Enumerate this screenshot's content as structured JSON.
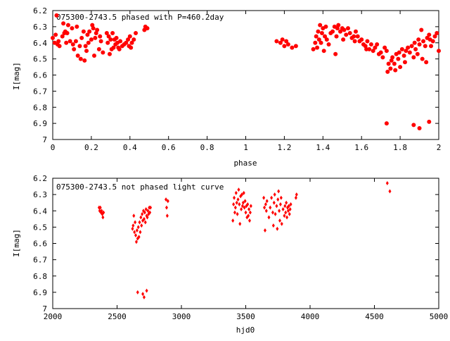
{
  "chart_data": [
    {
      "type": "scatter",
      "title": "075300-2743.5 phased with P=460.2day",
      "xlabel": "phase",
      "ylabel": "I[mag]",
      "xlim": [
        0,
        2
      ],
      "ylim": [
        6.2,
        7
      ],
      "y_inverted": true,
      "grid": false,
      "marker_color": "#ff0000",
      "marker_style": "filled circle",
      "x_ticks": [
        0,
        0.2,
        0.4,
        0.6,
        0.8,
        1,
        1.2,
        1.4,
        1.6,
        1.8,
        2
      ],
      "x_tick_labels": [
        "0",
        "0.2",
        "0.4",
        "0.6",
        "0.8",
        "1",
        "1.2",
        "1.4",
        "1.6",
        "1.8",
        "2"
      ],
      "y_ticks": [
        6.2,
        6.3,
        6.4,
        6.5,
        6.6,
        6.7,
        6.8,
        6.9,
        7
      ],
      "y_tick_labels": [
        "6.2",
        "6.3",
        "6.4",
        "6.5",
        "6.6",
        "6.7",
        "6.8",
        "6.9",
        "7"
      ],
      "points": [
        [
          0.0,
          6.37
        ],
        [
          0.01,
          6.4
        ],
        [
          0.015,
          6.35
        ],
        [
          0.02,
          6.23
        ],
        [
          0.025,
          6.41
        ],
        [
          0.03,
          6.39
        ],
        [
          0.035,
          6.42
        ],
        [
          0.05,
          6.36
        ],
        [
          0.055,
          6.28
        ],
        [
          0.06,
          6.34
        ],
        [
          0.065,
          6.33
        ],
        [
          0.07,
          6.4
        ],
        [
          0.075,
          6.34
        ],
        [
          0.08,
          6.29
        ],
        [
          0.09,
          6.39
        ],
        [
          0.1,
          6.31
        ],
        [
          0.105,
          6.41
        ],
        [
          0.11,
          6.44
        ],
        [
          0.12,
          6.39
        ],
        [
          0.125,
          6.3
        ],
        [
          0.13,
          6.48
        ],
        [
          0.14,
          6.42
        ],
        [
          0.145,
          6.5
        ],
        [
          0.15,
          6.37
        ],
        [
          0.16,
          6.33
        ],
        [
          0.165,
          6.51
        ],
        [
          0.17,
          6.42
        ],
        [
          0.175,
          6.45
        ],
        [
          0.18,
          6.35
        ],
        [
          0.185,
          6.4
        ],
        [
          0.19,
          6.33
        ],
        [
          0.2,
          6.38
        ],
        [
          0.205,
          6.29
        ],
        [
          0.21,
          6.31
        ],
        [
          0.215,
          6.48
        ],
        [
          0.22,
          6.37
        ],
        [
          0.225,
          6.34
        ],
        [
          0.23,
          6.32
        ],
        [
          0.24,
          6.44
        ],
        [
          0.245,
          6.36
        ],
        [
          0.25,
          6.39
        ],
        [
          0.26,
          6.46
        ],
        [
          0.28,
          6.34
        ],
        [
          0.285,
          6.4
        ],
        [
          0.29,
          6.36
        ],
        [
          0.295,
          6.47
        ],
        [
          0.3,
          6.38
        ],
        [
          0.305,
          6.44
        ],
        [
          0.31,
          6.34
        ],
        [
          0.315,
          6.43
        ],
        [
          0.32,
          6.38
        ],
        [
          0.325,
          6.41
        ],
        [
          0.33,
          6.37
        ],
        [
          0.335,
          6.4
        ],
        [
          0.34,
          6.43
        ],
        [
          0.345,
          6.44
        ],
        [
          0.35,
          6.39
        ],
        [
          0.36,
          6.42
        ],
        [
          0.37,
          6.41
        ],
        [
          0.38,
          6.4
        ],
        [
          0.39,
          6.38
        ],
        [
          0.395,
          6.42
        ],
        [
          0.4,
          6.36
        ],
        [
          0.405,
          6.43
        ],
        [
          0.41,
          6.4
        ],
        [
          0.42,
          6.38
        ],
        [
          0.43,
          6.34
        ],
        [
          0.475,
          6.32
        ],
        [
          0.48,
          6.3
        ],
        [
          0.49,
          6.31
        ],
        [
          1.16,
          6.39
        ],
        [
          1.18,
          6.4
        ],
        [
          1.19,
          6.38
        ],
        [
          1.2,
          6.42
        ],
        [
          1.21,
          6.39
        ],
        [
          1.22,
          6.41
        ],
        [
          1.24,
          6.43
        ],
        [
          1.26,
          6.42
        ],
        [
          1.35,
          6.44
        ],
        [
          1.36,
          6.4
        ],
        [
          1.365,
          6.36
        ],
        [
          1.37,
          6.43
        ],
        [
          1.375,
          6.33
        ],
        [
          1.38,
          6.38
        ],
        [
          1.385,
          6.29
        ],
        [
          1.39,
          6.4
        ],
        [
          1.395,
          6.34
        ],
        [
          1.4,
          6.31
        ],
        [
          1.405,
          6.45
        ],
        [
          1.41,
          6.36
        ],
        [
          1.415,
          6.3
        ],
        [
          1.42,
          6.38
        ],
        [
          1.43,
          6.41
        ],
        [
          1.44,
          6.34
        ],
        [
          1.45,
          6.33
        ],
        [
          1.46,
          6.3
        ],
        [
          1.465,
          6.47
        ],
        [
          1.47,
          6.36
        ],
        [
          1.475,
          6.31
        ],
        [
          1.48,
          6.29
        ],
        [
          1.49,
          6.33
        ],
        [
          1.5,
          6.31
        ],
        [
          1.505,
          6.38
        ],
        [
          1.51,
          6.32
        ],
        [
          1.52,
          6.35
        ],
        [
          1.53,
          6.31
        ],
        [
          1.54,
          6.34
        ],
        [
          1.55,
          6.37
        ],
        [
          1.56,
          6.36
        ],
        [
          1.565,
          6.39
        ],
        [
          1.57,
          6.33
        ],
        [
          1.58,
          6.36
        ],
        [
          1.59,
          6.39
        ],
        [
          1.6,
          6.38
        ],
        [
          1.61,
          6.41
        ],
        [
          1.62,
          6.42
        ],
        [
          1.625,
          6.44
        ],
        [
          1.63,
          6.39
        ],
        [
          1.64,
          6.44
        ],
        [
          1.65,
          6.41
        ],
        [
          1.66,
          6.45
        ],
        [
          1.67,
          6.43
        ],
        [
          1.68,
          6.41
        ],
        [
          1.69,
          6.47
        ],
        [
          1.7,
          6.46
        ],
        [
          1.71,
          6.49
        ],
        [
          1.72,
          6.43
        ],
        [
          1.73,
          6.45
        ],
        [
          1.735,
          6.58
        ],
        [
          1.74,
          6.53
        ],
        [
          1.75,
          6.56
        ],
        [
          1.755,
          6.51
        ],
        [
          1.76,
          6.49
        ],
        [
          1.77,
          6.53
        ],
        [
          1.775,
          6.57
        ],
        [
          1.78,
          6.47
        ],
        [
          1.79,
          6.5
        ],
        [
          1.795,
          6.46
        ],
        [
          1.8,
          6.55
        ],
        [
          1.81,
          6.44
        ],
        [
          1.82,
          6.48
        ],
        [
          1.825,
          6.52
        ],
        [
          1.83,
          6.45
        ],
        [
          1.84,
          6.43
        ],
        [
          1.85,
          6.46
        ],
        [
          1.86,
          6.42
        ],
        [
          1.87,
          6.49
        ],
        [
          1.875,
          6.4
        ],
        [
          1.88,
          6.44
        ],
        [
          1.89,
          6.47
        ],
        [
          1.895,
          6.38
        ],
        [
          1.9,
          6.41
        ],
        [
          1.91,
          6.32
        ],
        [
          1.915,
          6.5
        ],
        [
          1.92,
          6.39
        ],
        [
          1.93,
          6.42
        ],
        [
          1.935,
          6.52
        ],
        [
          1.94,
          6.37
        ],
        [
          1.95,
          6.35
        ],
        [
          1.955,
          6.38
        ],
        [
          1.96,
          6.42
        ],
        [
          1.97,
          6.39
        ],
        [
          1.98,
          6.36
        ],
        [
          1.99,
          6.34
        ],
        [
          2.0,
          6.45
        ],
        [
          1.73,
          6.9
        ],
        [
          1.87,
          6.91
        ],
        [
          1.9,
          6.93
        ],
        [
          1.95,
          6.89
        ]
      ]
    },
    {
      "type": "scatter",
      "title": "075300-2743.5 not phased light curve",
      "xlabel": "hjd0",
      "ylabel": "I[mag]",
      "xlim": [
        2000,
        5000
      ],
      "ylim": [
        6.2,
        7
      ],
      "y_inverted": true,
      "grid": false,
      "marker_color": "#ff0000",
      "marker_style": "small diamond",
      "x_ticks": [
        2000,
        2500,
        3000,
        3500,
        4000,
        4500,
        5000
      ],
      "x_tick_labels": [
        "2000",
        "2500",
        "3000",
        "3500",
        "4000",
        "4500",
        "5000"
      ],
      "y_ticks": [
        6.2,
        6.3,
        6.4,
        6.5,
        6.6,
        6.7,
        6.8,
        6.9,
        7
      ],
      "y_tick_labels": [
        "6.2",
        "6.3",
        "6.4",
        "6.5",
        "6.6",
        "6.7",
        "6.8",
        "6.9",
        "7"
      ],
      "points": [
        [
          2360,
          6.38
        ],
        [
          2365,
          6.4
        ],
        [
          2370,
          6.38
        ],
        [
          2375,
          6.41
        ],
        [
          2380,
          6.4
        ],
        [
          2385,
          6.42
        ],
        [
          2390,
          6.44
        ],
        [
          2395,
          6.41
        ],
        [
          2620,
          6.51
        ],
        [
          2625,
          6.49
        ],
        [
          2630,
          6.43
        ],
        [
          2635,
          6.53
        ],
        [
          2640,
          6.47
        ],
        [
          2645,
          6.55
        ],
        [
          2650,
          6.59
        ],
        [
          2655,
          6.52
        ],
        [
          2660,
          6.57
        ],
        [
          2665,
          6.5
        ],
        [
          2670,
          6.56
        ],
        [
          2675,
          6.47
        ],
        [
          2680,
          6.53
        ],
        [
          2685,
          6.44
        ],
        [
          2690,
          6.49
        ],
        [
          2695,
          6.42
        ],
        [
          2700,
          6.46
        ],
        [
          2705,
          6.4
        ],
        [
          2710,
          6.45
        ],
        [
          2715,
          6.41
        ],
        [
          2720,
          6.47
        ],
        [
          2725,
          6.39
        ],
        [
          2730,
          6.43
        ],
        [
          2735,
          6.44
        ],
        [
          2740,
          6.4
        ],
        [
          2745,
          6.42
        ],
        [
          2750,
          6.38
        ],
        [
          2755,
          6.41
        ],
        [
          2760,
          6.38
        ],
        [
          2880,
          6.33
        ],
        [
          2885,
          6.38
        ],
        [
          2890,
          6.43
        ],
        [
          2895,
          6.34
        ],
        [
          3400,
          6.46
        ],
        [
          3405,
          6.36
        ],
        [
          3410,
          6.32
        ],
        [
          3415,
          6.41
        ],
        [
          3420,
          6.38
        ],
        [
          3425,
          6.29
        ],
        [
          3430,
          6.35
        ],
        [
          3435,
          6.42
        ],
        [
          3440,
          6.33
        ],
        [
          3445,
          6.27
        ],
        [
          3450,
          6.36
        ],
        [
          3455,
          6.48
        ],
        [
          3460,
          6.31
        ],
        [
          3465,
          6.39
        ],
        [
          3470,
          6.3
        ],
        [
          3475,
          6.37
        ],
        [
          3480,
          6.35
        ],
        [
          3485,
          6.29
        ],
        [
          3490,
          6.38
        ],
        [
          3495,
          6.34
        ],
        [
          3500,
          6.41
        ],
        [
          3505,
          6.37
        ],
        [
          3510,
          6.44
        ],
        [
          3515,
          6.36
        ],
        [
          3520,
          6.43
        ],
        [
          3525,
          6.39
        ],
        [
          3530,
          6.46
        ],
        [
          3535,
          6.41
        ],
        [
          3540,
          6.37
        ],
        [
          3640,
          6.32
        ],
        [
          3645,
          6.38
        ],
        [
          3650,
          6.52
        ],
        [
          3655,
          6.36
        ],
        [
          3660,
          6.4
        ],
        [
          3665,
          6.34
        ],
        [
          3680,
          6.44
        ],
        [
          3690,
          6.38
        ],
        [
          3700,
          6.32
        ],
        [
          3710,
          6.41
        ],
        [
          3715,
          6.49
        ],
        [
          3720,
          6.35
        ],
        [
          3725,
          6.3
        ],
        [
          3730,
          6.42
        ],
        [
          3740,
          6.37
        ],
        [
          3745,
          6.51
        ],
        [
          3750,
          6.33
        ],
        [
          3755,
          6.28
        ],
        [
          3760,
          6.4
        ],
        [
          3765,
          6.46
        ],
        [
          3770,
          6.36
        ],
        [
          3775,
          6.32
        ],
        [
          3780,
          6.48
        ],
        [
          3790,
          6.39
        ],
        [
          3800,
          6.43
        ],
        [
          3805,
          6.37
        ],
        [
          3810,
          6.41
        ],
        [
          3815,
          6.35
        ],
        [
          3820,
          6.44
        ],
        [
          3825,
          6.38
        ],
        [
          3830,
          6.4
        ],
        [
          3835,
          6.37
        ],
        [
          3840,
          6.42
        ],
        [
          3845,
          6.39
        ],
        [
          3850,
          6.36
        ],
        [
          3890,
          6.32
        ],
        [
          3895,
          6.3
        ],
        [
          2660,
          6.9
        ],
        [
          2700,
          6.91
        ],
        [
          2710,
          6.93
        ],
        [
          2730,
          6.89
        ],
        [
          4600,
          6.23
        ],
        [
          4620,
          6.28
        ]
      ]
    }
  ]
}
